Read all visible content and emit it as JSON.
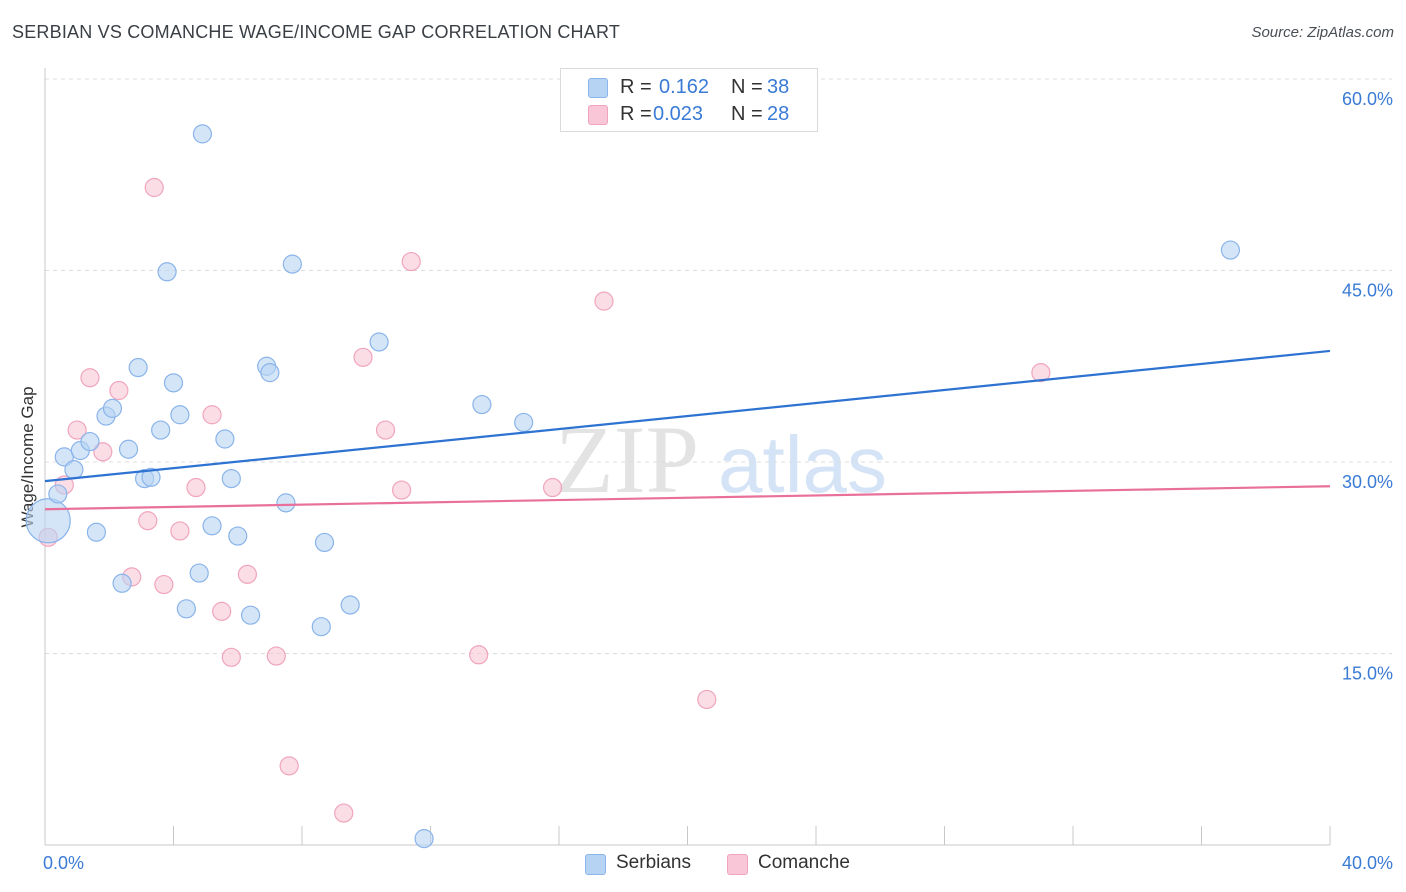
{
  "title": "SERBIAN VS COMANCHE WAGE/INCOME GAP CORRELATION CHART",
  "source": "Source: ZipAtlas.com",
  "watermark": {
    "zip": "ZIP",
    "atlas": "atlas"
  },
  "colors": {
    "blue_fill": "#b7d3f4",
    "blue_stroke": "#8ab4ea",
    "blue_line": "#2e73d2",
    "pink_fill": "#f8c6d6",
    "pink_stroke": "#f0a5bd",
    "pink_line": "#e8709a",
    "axis_label": "#3a7bd5",
    "grid": "#dcdcdc"
  },
  "legend": {
    "serbians": {
      "r_label": "R =",
      "r_value": "0.162",
      "n_label": "N =",
      "n_value": "38"
    },
    "comanche": {
      "r_label": "R =",
      "r_value": "0.023",
      "n_label": "N =",
      "n_value": "28"
    }
  },
  "bottom_legend": {
    "serbians": "Serbians",
    "comanche": "Comanche"
  },
  "chart_data": {
    "type": "scatter",
    "xlabel": "",
    "ylabel": "Wage/Income Gap",
    "xlim": [
      0,
      40
    ],
    "ylim": [
      0,
      60
    ],
    "x_tick_labels": {
      "min": "0.0%",
      "max": "40.0%"
    },
    "y_ticks": [
      {
        "value": 60,
        "label": "60.0%"
      },
      {
        "value": 45,
        "label": "45.0%"
      },
      {
        "value": 30,
        "label": "30.0%"
      },
      {
        "value": 15,
        "label": "15.0%"
      }
    ],
    "series": [
      {
        "name": "Serbians",
        "color": "#b7d3f4",
        "trend": {
          "x": [
            0,
            40
          ],
          "y": [
            28.5,
            38.7
          ]
        },
        "points": [
          {
            "x": 0.1,
            "y": 25.4,
            "big": true
          },
          {
            "x": 0.4,
            "y": 27.5
          },
          {
            "x": 0.6,
            "y": 30.4
          },
          {
            "x": 0.9,
            "y": 29.4
          },
          {
            "x": 1.1,
            "y": 30.9
          },
          {
            "x": 1.4,
            "y": 31.6
          },
          {
            "x": 1.6,
            "y": 24.5
          },
          {
            "x": 1.9,
            "y": 33.6
          },
          {
            "x": 2.1,
            "y": 34.2
          },
          {
            "x": 2.4,
            "y": 20.5
          },
          {
            "x": 2.6,
            "y": 31.0
          },
          {
            "x": 2.9,
            "y": 37.4
          },
          {
            "x": 3.1,
            "y": 28.7
          },
          {
            "x": 3.3,
            "y": 28.8
          },
          {
            "x": 3.6,
            "y": 32.5
          },
          {
            "x": 3.8,
            "y": 44.9
          },
          {
            "x": 4.0,
            "y": 36.2
          },
          {
            "x": 4.2,
            "y": 33.7
          },
          {
            "x": 4.4,
            "y": 18.5
          },
          {
            "x": 4.8,
            "y": 21.3
          },
          {
            "x": 4.9,
            "y": 55.7
          },
          {
            "x": 5.2,
            "y": 25.0
          },
          {
            "x": 5.6,
            "y": 31.8
          },
          {
            "x": 5.8,
            "y": 28.7
          },
          {
            "x": 6.0,
            "y": 24.2
          },
          {
            "x": 6.4,
            "y": 18.0
          },
          {
            "x": 6.9,
            "y": 37.5
          },
          {
            "x": 7.0,
            "y": 37.0
          },
          {
            "x": 7.5,
            "y": 26.8
          },
          {
            "x": 7.7,
            "y": 45.5
          },
          {
            "x": 8.6,
            "y": 17.1
          },
          {
            "x": 8.7,
            "y": 23.7
          },
          {
            "x": 9.5,
            "y": 18.8
          },
          {
            "x": 10.4,
            "y": 39.4
          },
          {
            "x": 11.8,
            "y": 0.5
          },
          {
            "x": 13.6,
            "y": 34.5
          },
          {
            "x": 14.9,
            "y": 33.1
          },
          {
            "x": 36.9,
            "y": 46.6
          }
        ]
      },
      {
        "name": "Comanche",
        "color": "#f8c6d6",
        "trend": {
          "x": [
            0,
            40
          ],
          "y": [
            26.3,
            28.1
          ]
        },
        "points": [
          {
            "x": 0.1,
            "y": 24.1
          },
          {
            "x": 0.6,
            "y": 28.2
          },
          {
            "x": 1.0,
            "y": 32.5
          },
          {
            "x": 1.4,
            "y": 36.6
          },
          {
            "x": 1.8,
            "y": 30.8
          },
          {
            "x": 2.3,
            "y": 35.6
          },
          {
            "x": 2.7,
            "y": 21.0
          },
          {
            "x": 3.2,
            "y": 25.4
          },
          {
            "x": 3.4,
            "y": 51.5
          },
          {
            "x": 3.7,
            "y": 20.4
          },
          {
            "x": 4.2,
            "y": 24.6
          },
          {
            "x": 4.7,
            "y": 28.0
          },
          {
            "x": 5.2,
            "y": 33.7
          },
          {
            "x": 5.5,
            "y": 18.3
          },
          {
            "x": 5.8,
            "y": 14.7
          },
          {
            "x": 6.3,
            "y": 21.2
          },
          {
            "x": 7.2,
            "y": 14.8
          },
          {
            "x": 7.6,
            "y": 6.2
          },
          {
            "x": 9.3,
            "y": 2.5
          },
          {
            "x": 9.9,
            "y": 38.2
          },
          {
            "x": 10.6,
            "y": 32.5
          },
          {
            "x": 11.1,
            "y": 27.8
          },
          {
            "x": 11.4,
            "y": 45.7
          },
          {
            "x": 13.5,
            "y": 14.9
          },
          {
            "x": 15.8,
            "y": 28.0
          },
          {
            "x": 17.4,
            "y": 42.6
          },
          {
            "x": 20.6,
            "y": 11.4
          },
          {
            "x": 31.0,
            "y": 37.0
          }
        ]
      }
    ]
  }
}
